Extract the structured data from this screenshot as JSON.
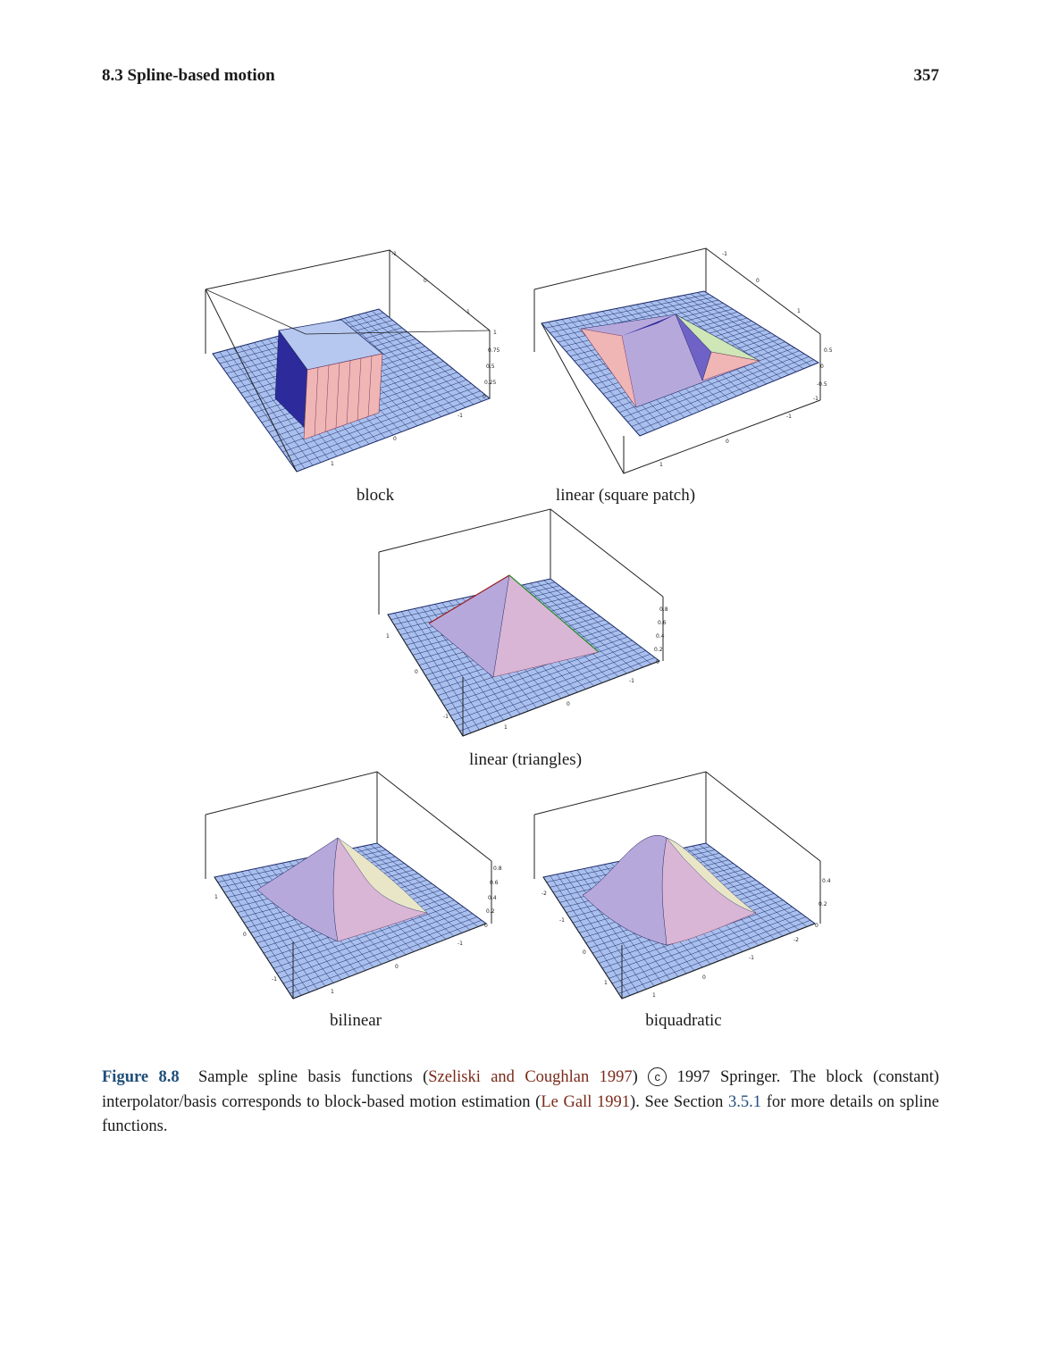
{
  "header": {
    "section": "8.3  Spline-based motion",
    "page": "357"
  },
  "panels": [
    {
      "id": "block",
      "label": "block",
      "z_ticks": [
        "1",
        "0.75",
        "0.5",
        "0.25",
        "0"
      ],
      "x_ticks": [
        "-1",
        "0",
        "1"
      ],
      "y_ticks": [
        "1",
        "0",
        "-1"
      ]
    },
    {
      "id": "linear-square",
      "label": "linear (square patch)",
      "z_ticks": [
        "0.5",
        "0",
        "-0.5",
        "-1"
      ],
      "x_ticks": [
        "-1",
        "0",
        "1"
      ],
      "y_ticks": [
        "1",
        "0",
        "-1"
      ]
    },
    {
      "id": "linear-triangles",
      "label": "linear (triangles)",
      "z_ticks": [
        "0.8",
        "0.6",
        "0.4",
        "0.2",
        "0"
      ],
      "x_ticks": [
        "-1",
        "0",
        "1"
      ],
      "y_ticks": [
        "1",
        "0",
        "-1"
      ]
    },
    {
      "id": "bilinear",
      "label": "bilinear",
      "z_ticks": [
        "0.8",
        "0.6",
        "0.4",
        "0.2",
        "0"
      ],
      "x_ticks": [
        "-1",
        "0",
        "1"
      ],
      "y_ticks": [
        "1",
        "0",
        "-1"
      ]
    },
    {
      "id": "biquadratic",
      "label": "biquadratic",
      "z_ticks": [
        "0.4",
        "0.2",
        "0"
      ],
      "x_ticks": [
        "-2",
        "-1",
        "0",
        "1"
      ],
      "y_ticks": [
        "1",
        "0",
        "-1",
        "-2"
      ]
    }
  ],
  "caption": {
    "figure_number": "Figure 8.8",
    "t1": "Sample spline basis functions (",
    "cite1": "Szeliski and Coughlan 1997",
    "t2": ")",
    "copyright_symbol": "c",
    "t3": " 1997 Springer. The block (constant) interpolator/basis corresponds to block-based motion estimation (",
    "cite2": "Le Gall 1991",
    "t4": "). See Section ",
    "section_ref": "3.5.1",
    "t5": " for more details on spline functions."
  },
  "colors": {
    "grid_fill": "#a9c0ee",
    "grid_line": "#1c2a66",
    "surface_pink": "#f0b6b6",
    "surface_lilac": "#b7a8dc",
    "surface_dark": "#2d2a9c"
  }
}
